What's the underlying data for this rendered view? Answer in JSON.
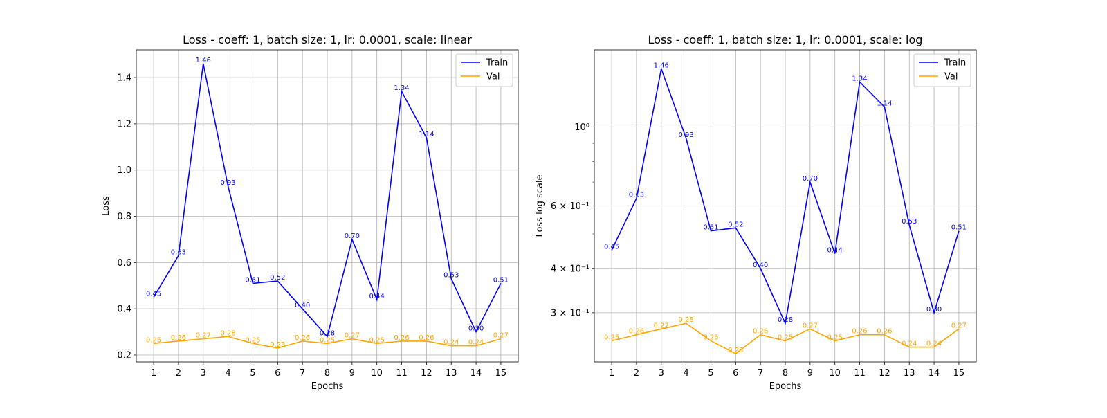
{
  "chart_data": [
    {
      "type": "line",
      "title": "Loss - coeff: 1, batch size: 1, lr: 0.0001, scale: linear",
      "xlabel": "Epochs",
      "ylabel": "Loss",
      "yscale": "linear",
      "x": [
        1,
        2,
        3,
        4,
        5,
        6,
        7,
        8,
        9,
        10,
        11,
        12,
        13,
        14,
        15
      ],
      "xticks": [
        "1",
        "2",
        "3",
        "4",
        "5",
        "6",
        "7",
        "8",
        "9",
        "10",
        "11",
        "12",
        "13",
        "14",
        "15"
      ],
      "ylim": [
        0.17,
        1.52
      ],
      "yticks": [
        0.2,
        0.4,
        0.6,
        0.8,
        1.0,
        1.2,
        1.4
      ],
      "ytick_labels": [
        "0.2",
        "0.4",
        "0.6",
        "0.8",
        "1.0",
        "1.2",
        "1.4"
      ],
      "grid": true,
      "legend_position": "top-right",
      "series": [
        {
          "name": "Train",
          "color": "#0000ff",
          "values": [
            0.45,
            0.63,
            1.46,
            0.93,
            0.51,
            0.52,
            0.4,
            0.28,
            0.7,
            0.44,
            1.34,
            1.14,
            0.53,
            0.3,
            0.51
          ],
          "labels": [
            "0.45",
            "0.63",
            "1.46",
            "0.93",
            "0.51",
            "0.52",
            "0.40",
            "0.28",
            "0.70",
            "0.44",
            "1.34",
            "1.14",
            "0.53",
            "0.30",
            "0.51"
          ]
        },
        {
          "name": "Val",
          "color": "#ffa500",
          "values": [
            0.25,
            0.26,
            0.27,
            0.28,
            0.25,
            0.23,
            0.26,
            0.25,
            0.27,
            0.25,
            0.26,
            0.26,
            0.24,
            0.24,
            0.27
          ],
          "labels": [
            "0.25",
            "0.26",
            "0.27",
            "0.28",
            "0.25",
            "0.23",
            "0.26",
            "0.25",
            "0.27",
            "0.25",
            "0.26",
            "0.26",
            "0.24",
            "0.24",
            "0.27"
          ]
        }
      ]
    },
    {
      "type": "line",
      "title": "Loss - coeff: 1, batch size: 1, lr: 0.0001, scale: log",
      "xlabel": "Epochs",
      "ylabel": "Loss log scale",
      "yscale": "log",
      "x": [
        1,
        2,
        3,
        4,
        5,
        6,
        7,
        8,
        9,
        10,
        11,
        12,
        13,
        14,
        15
      ],
      "xticks": [
        "1",
        "2",
        "3",
        "4",
        "5",
        "6",
        "7",
        "8",
        "9",
        "10",
        "11",
        "12",
        "13",
        "14",
        "15"
      ],
      "ylim": [
        0.218,
        1.65
      ],
      "yticks": [
        0.3,
        0.4,
        0.6,
        1.0
      ],
      "ytick_labels": [
        "3 × 10⁻¹",
        "4 × 10⁻¹",
        "6 × 10⁻¹",
        "10⁰"
      ],
      "minor_yticks": [
        0.5,
        0.7,
        0.8,
        0.9
      ],
      "grid": true,
      "legend_position": "top-right",
      "series": [
        {
          "name": "Train",
          "color": "#0000ff",
          "values": [
            0.45,
            0.63,
            1.46,
            0.93,
            0.51,
            0.52,
            0.4,
            0.28,
            0.7,
            0.44,
            1.34,
            1.14,
            0.53,
            0.3,
            0.51
          ],
          "labels": [
            "0.45",
            "0.63",
            "1.46",
            "0.93",
            "0.51",
            "0.52",
            "0.40",
            "0.28",
            "0.70",
            "0.44",
            "1.34",
            "1.14",
            "0.53",
            "0.30",
            "0.51"
          ]
        },
        {
          "name": "Val",
          "color": "#ffa500",
          "values": [
            0.25,
            0.26,
            0.27,
            0.28,
            0.25,
            0.23,
            0.26,
            0.25,
            0.27,
            0.25,
            0.26,
            0.26,
            0.24,
            0.24,
            0.27
          ],
          "labels": [
            "0.25",
            "0.26",
            "0.27",
            "0.28",
            "0.25",
            "0.23",
            "0.26",
            "0.25",
            "0.27",
            "0.25",
            "0.26",
            "0.26",
            "0.24",
            "0.24",
            "0.27"
          ]
        }
      ]
    }
  ]
}
